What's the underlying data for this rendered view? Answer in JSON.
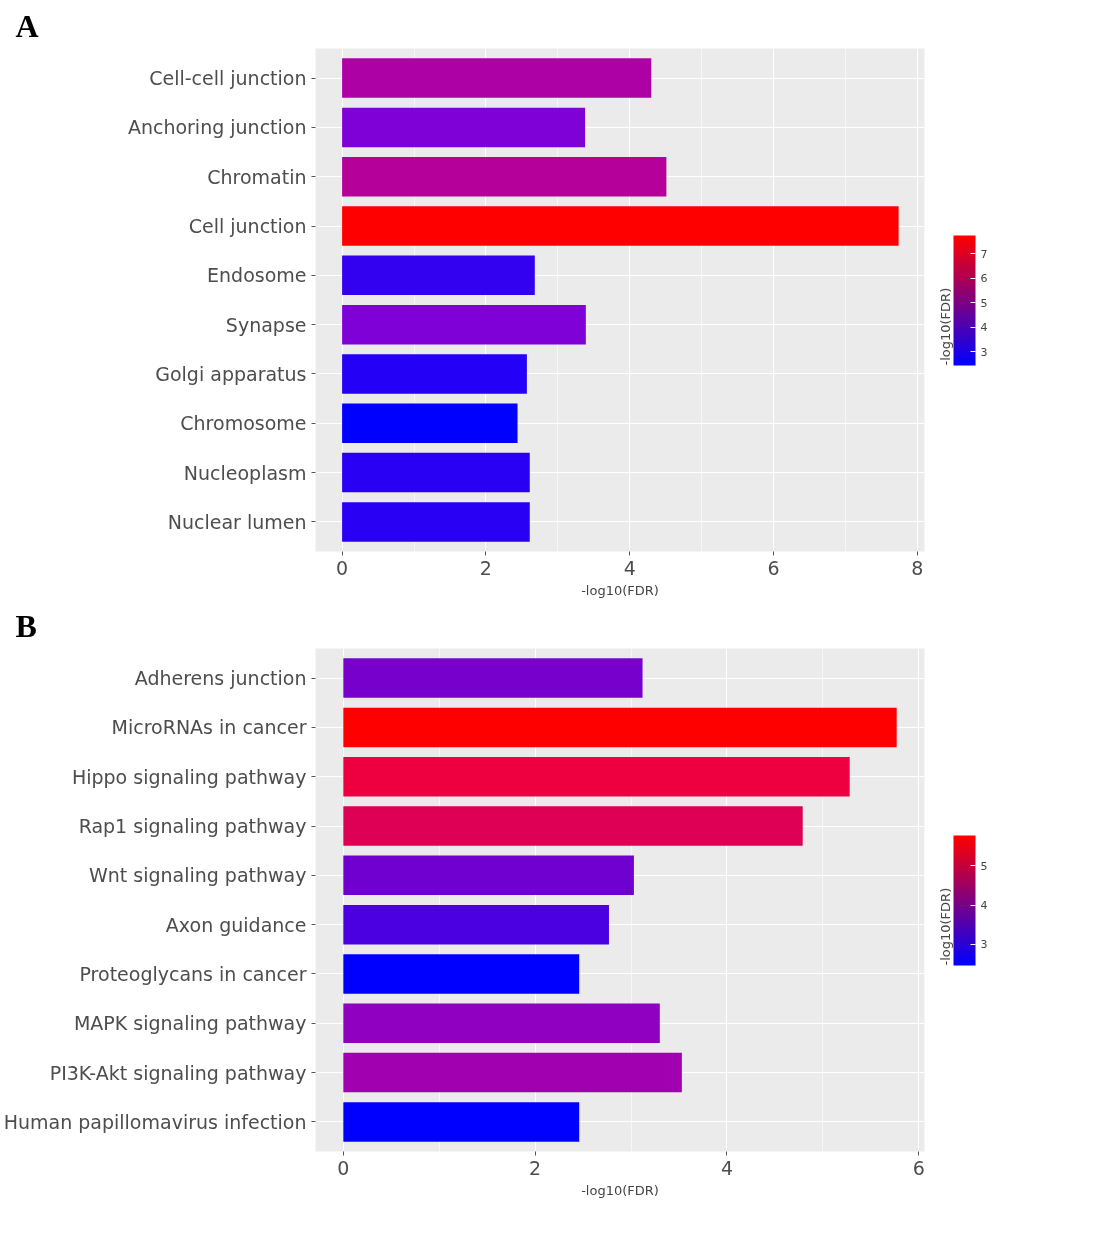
{
  "chart_data": [
    {
      "type": "bar",
      "orientation": "horizontal",
      "annotations": [
        "A"
      ],
      "xlabel": "-log10(FDR)",
      "categories": [
        "Cell-cell junction",
        "Anchoring junction",
        "Chromatin",
        "Cell junction",
        "Endosome",
        "Synapse",
        "Golgi apparatus",
        "Chromosome",
        "Nucleoplasm",
        "Nuclear lumen"
      ],
      "values": [
        4.3,
        3.38,
        4.51,
        7.74,
        2.68,
        3.39,
        2.57,
        2.44,
        2.61,
        2.61
      ],
      "colors": [
        "#ad00a5",
        "#8000d8",
        "#b5009a",
        "#ff0000",
        "#3300f0",
        "#8000d8",
        "#2400f6",
        "#0000ff",
        "#2a00f5",
        "#2a00f5"
      ],
      "xlim": [
        -0.37,
        8.1
      ],
      "xticks": [
        0,
        2,
        4,
        6,
        8
      ],
      "grid": true,
      "clabel": "-log10(FDR)",
      "clim": [
        2.44,
        7.74
      ],
      "cticks": [
        3,
        4,
        5,
        6,
        7
      ]
    },
    {
      "type": "bar",
      "orientation": "horizontal",
      "annotations": [
        "B"
      ],
      "xlabel": "-log10(FDR)",
      "categories": [
        "Adherens junction",
        "MicroRNAs in cancer",
        "Hippo signaling pathway",
        "Rap1 signaling pathway",
        "Wnt signaling pathway",
        "Axon guidance",
        "Proteoglycans in cancer",
        "MAPK signaling pathway",
        "PI3K-Akt signaling pathway",
        "Human papillomavirus infection"
      ],
      "values": [
        3.12,
        5.77,
        5.28,
        4.79,
        3.03,
        2.77,
        2.46,
        3.3,
        3.53,
        2.46
      ],
      "colors": [
        "#7800cc",
        "#ff0000",
        "#ee0040",
        "#dd0055",
        "#7000d0",
        "#4a00e0",
        "#0000ff",
        "#9000c0",
        "#a000b0",
        "#0000ff"
      ],
      "xlim": [
        -0.29,
        6.06
      ],
      "xticks": [
        0,
        2,
        4,
        6
      ],
      "grid": true,
      "clabel": "-log10(FDR)",
      "clim": [
        2.46,
        5.77
      ],
      "cticks": [
        3,
        4,
        5
      ]
    }
  ]
}
